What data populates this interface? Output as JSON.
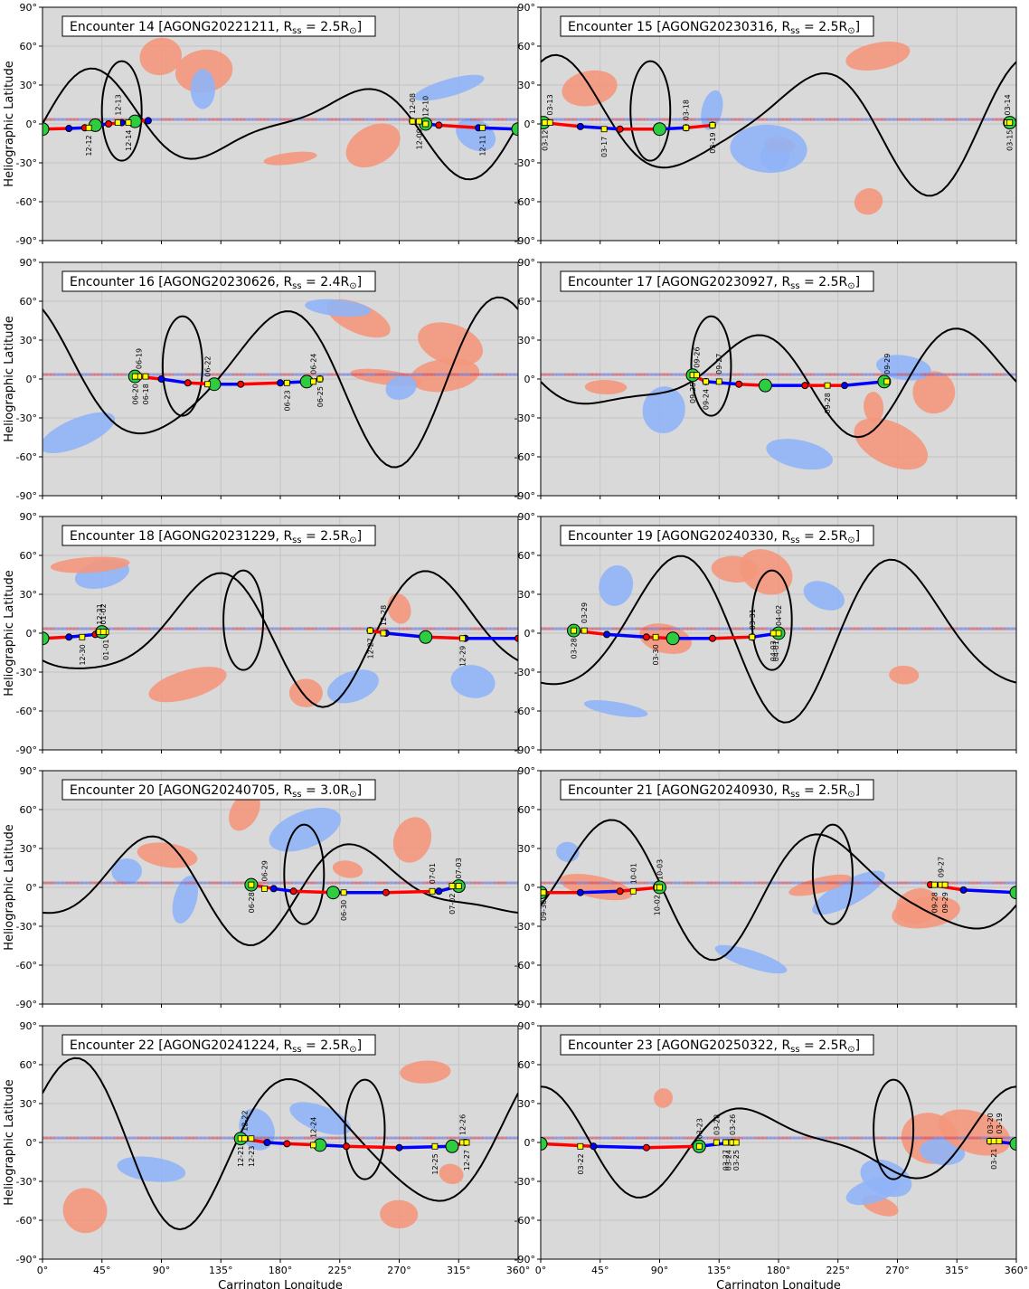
{
  "figure": {
    "xlabel": "Carrington Longitude",
    "ylabel": "Heliographic Latitude",
    "xticks": [
      "0°",
      "45°",
      "90°",
      "135°",
      "180°",
      "225°",
      "270°",
      "315°",
      "360°"
    ],
    "yticks": [
      "90°",
      "60°",
      "30°",
      "0°",
      "-30°",
      "-60°",
      "-90°"
    ],
    "colors": {
      "background": "#d9d9d9",
      "positive": "#f4977c",
      "negative": "#8fb4f7",
      "neutral_line": "#000000",
      "track_red": "#ff0000",
      "track_blue": "#0000ff",
      "marker_green": "#2ecc40",
      "marker_yellow": "#ffff00"
    }
  },
  "chart_data": [
    {
      "type": "scatter",
      "title": "Encounter 14 [AGONG20221211, R$_{ss}$ = 2.5R$_\\odot$]",
      "encounter": "14",
      "magnetogram": "AGONG20221211",
      "rss": "2.5",
      "xlim": [
        0,
        360
      ],
      "ylim": [
        -90,
        90
      ],
      "xlabel": "",
      "ylabel": "Heliographic Latitude",
      "grid": true,
      "track": [
        [
          0,
          -4
        ],
        [
          20,
          -3.5
        ],
        [
          32,
          -3
        ],
        [
          40,
          -1
        ],
        [
          50,
          0
        ],
        [
          60,
          1
        ],
        [
          70,
          2
        ],
        [
          80,
          2.5
        ],
        [
          280,
          2
        ],
        [
          290,
          0
        ],
        [
          300,
          -1
        ],
        [
          330,
          -3
        ],
        [
          360,
          -4
        ]
      ],
      "dates": [
        {
          "label": "12-12",
          "lon": 35
        },
        {
          "label": "12-13",
          "lon": 57
        },
        {
          "label": "12-14",
          "lon": 65
        },
        {
          "label": "12-08",
          "lon": 280
        },
        {
          "label": "12-09",
          "lon": 285
        },
        {
          "label": "12-10",
          "lon": 290
        },
        {
          "label": "12-11",
          "lon": 333
        }
      ]
    },
    {
      "type": "scatter",
      "title": "Encounter 15 [AGONG20230316, R$_{ss}$ = 2.5R$_\\odot$]",
      "encounter": "15",
      "magnetogram": "AGONG20230316",
      "rss": "2.5",
      "xlim": [
        0,
        360
      ],
      "ylim": [
        -90,
        90
      ],
      "xlabel": "",
      "ylabel": "",
      "grid": true,
      "track": [
        [
          2,
          1
        ],
        [
          30,
          -2
        ],
        [
          60,
          -4
        ],
        [
          90,
          -4
        ],
        [
          110,
          -3
        ],
        [
          130,
          -1
        ],
        [
          355,
          1
        ]
      ],
      "dates": [
        {
          "label": "03-12",
          "lon": 3
        },
        {
          "label": "03-13",
          "lon": 7
        },
        {
          "label": "03-17",
          "lon": 48
        },
        {
          "label": "03-18",
          "lon": 110
        },
        {
          "label": "03-19",
          "lon": 130
        },
        {
          "label": "03-14",
          "lon": 353
        },
        {
          "label": "03-15",
          "lon": 355
        }
      ]
    },
    {
      "type": "scatter",
      "title": "Encounter 16 [AGONG20230626, R$_{ss}$ = 2.4R$_\\odot$]",
      "encounter": "16",
      "magnetogram": "AGONG20230626",
      "rss": "2.4",
      "xlim": [
        0,
        360
      ],
      "ylim": [
        -90,
        90
      ],
      "xlabel": "",
      "ylabel": "Heliographic Latitude",
      "grid": true,
      "track": [
        [
          70,
          2
        ],
        [
          90,
          0
        ],
        [
          110,
          -3
        ],
        [
          130,
          -4
        ],
        [
          150,
          -4
        ],
        [
          180,
          -3
        ],
        [
          200,
          -2
        ],
        [
          210,
          0
        ]
      ],
      "dates": [
        {
          "label": "06-18",
          "lon": 78
        },
        {
          "label": "06-19",
          "lon": 73
        },
        {
          "label": "06-20",
          "lon": 70
        },
        {
          "label": "06-22",
          "lon": 125
        },
        {
          "label": "06-23",
          "lon": 185
        },
        {
          "label": "06-24",
          "lon": 205
        },
        {
          "label": "06-25",
          "lon": 210
        }
      ]
    },
    {
      "type": "scatter",
      "title": "Encounter 17 [AGONG20230927, R$_{ss}$ = 2.5R$_\\odot$]",
      "encounter": "17",
      "magnetogram": "AGONG20230927",
      "rss": "2.5",
      "xlim": [
        0,
        360
      ],
      "ylim": [
        -90,
        90
      ],
      "xlabel": "",
      "ylabel": "",
      "grid": true,
      "track": [
        [
          115,
          3
        ],
        [
          125,
          -2
        ],
        [
          150,
          -4
        ],
        [
          170,
          -5
        ],
        [
          200,
          -5
        ],
        [
          230,
          -5
        ],
        [
          260,
          -2
        ]
      ],
      "dates": [
        {
          "label": "09-25",
          "lon": 115
        },
        {
          "label": "09-26",
          "lon": 118
        },
        {
          "label": "09-24",
          "lon": 125
        },
        {
          "label": "09-27",
          "lon": 135
        },
        {
          "label": "09-28",
          "lon": 217
        },
        {
          "label": "09-29",
          "lon": 262
        }
      ]
    },
    {
      "type": "scatter",
      "title": "Encounter 18 [AGONG20231229, R$_{ss}$ = 2.5R$_\\odot$]",
      "encounter": "18",
      "magnetogram": "AGONG20231229",
      "rss": "2.5",
      "xlim": [
        0,
        360
      ],
      "ylim": [
        -90,
        90
      ],
      "xlabel": "",
      "ylabel": "Heliographic Latitude",
      "grid": true,
      "track": [
        [
          0,
          -4
        ],
        [
          20,
          -3
        ],
        [
          40,
          -1
        ],
        [
          45,
          1
        ],
        [
          248,
          2
        ],
        [
          260,
          0
        ],
        [
          290,
          -3
        ],
        [
          320,
          -4
        ],
        [
          360,
          -4
        ]
      ],
      "dates": [
        {
          "label": "12-30",
          "lon": 30
        },
        {
          "label": "12-31",
          "lon": 43
        },
        {
          "label": "01-01",
          "lon": 48
        },
        {
          "label": "01-02",
          "lon": 46
        },
        {
          "label": "12-27",
          "lon": 248
        },
        {
          "label": "12-28",
          "lon": 258
        },
        {
          "label": "12-29",
          "lon": 318
        }
      ]
    },
    {
      "type": "scatter",
      "title": "Encounter 19 [AGONG20240330, R$_{ss}$ = 2.5R$_\\odot$]",
      "encounter": "19",
      "magnetogram": "AGONG20240330",
      "rss": "2.5",
      "xlim": [
        0,
        360
      ],
      "ylim": [
        -90,
        90
      ],
      "xlabel": "",
      "ylabel": "",
      "grid": true,
      "track": [
        [
          25,
          2
        ],
        [
          50,
          -1
        ],
        [
          80,
          -3
        ],
        [
          100,
          -4
        ],
        [
          130,
          -4
        ],
        [
          160,
          -3
        ],
        [
          180,
          0
        ]
      ],
      "dates": [
        {
          "label": "03-28",
          "lon": 25
        },
        {
          "label": "03-29",
          "lon": 33
        },
        {
          "label": "03-30",
          "lon": 87
        },
        {
          "label": "03-31",
          "lon": 160
        },
        {
          "label": "04-01",
          "lon": 178
        },
        {
          "label": "04-02",
          "lon": 180
        },
        {
          "label": "04-03",
          "lon": 176
        }
      ]
    },
    {
      "type": "scatter",
      "title": "Encounter 20 [AGONG20240705, R$_{ss}$ = 3.0R$_\\odot$]",
      "encounter": "20",
      "magnetogram": "AGONG20240705",
      "rss": "3.0",
      "xlim": [
        0,
        360
      ],
      "ylim": [
        -90,
        90
      ],
      "xlabel": "",
      "ylabel": "Heliographic Latitude",
      "grid": true,
      "track": [
        [
          158,
          2
        ],
        [
          175,
          -1
        ],
        [
          190,
          -3
        ],
        [
          220,
          -4
        ],
        [
          260,
          -4
        ],
        [
          300,
          -3
        ],
        [
          315,
          1
        ]
      ],
      "dates": [
        {
          "label": "06-28",
          "lon": 158
        },
        {
          "label": "06-29",
          "lon": 168
        },
        {
          "label": "06-30",
          "lon": 228
        },
        {
          "label": "07-01",
          "lon": 295
        },
        {
          "label": "07-02",
          "lon": 310
        },
        {
          "label": "07-03",
          "lon": 315
        }
      ]
    },
    {
      "type": "scatter",
      "title": "Encounter 21 [AGONG20240930, R$_{ss}$ = 2.5R$_\\odot$]",
      "encounter": "21",
      "magnetogram": "AGONG20240930",
      "rss": "2.5",
      "xlim": [
        0,
        360
      ],
      "ylim": [
        -90,
        90
      ],
      "xlabel": "",
      "ylabel": "",
      "grid": true,
      "track": [
        [
          0,
          -4
        ],
        [
          30,
          -4
        ],
        [
          60,
          -3
        ],
        [
          90,
          0
        ],
        [
          295,
          2
        ],
        [
          320,
          -2
        ],
        [
          360,
          -4
        ]
      ],
      "dates": [
        {
          "label": "09-30",
          "lon": 2
        },
        {
          "label": "10-01",
          "lon": 70
        },
        {
          "label": "10-02",
          "lon": 88
        },
        {
          "label": "10-03",
          "lon": 90
        },
        {
          "label": "09-28",
          "lon": 298
        },
        {
          "label": "09-27",
          "lon": 303
        },
        {
          "label": "09-29",
          "lon": 306
        }
      ]
    },
    {
      "type": "scatter",
      "title": "Encounter 22 [AGONG20241224, R$_{ss}$ = 2.5R$_\\odot$]",
      "encounter": "22",
      "magnetogram": "AGONG20241224",
      "rss": "2.5",
      "xlim": [
        0,
        360
      ],
      "ylim": [
        -90,
        90
      ],
      "xlabel": "Carrington Longitude",
      "ylabel": "Heliographic Latitude",
      "grid": true,
      "track": [
        [
          150,
          3
        ],
        [
          170,
          0
        ],
        [
          185,
          -1
        ],
        [
          210,
          -2
        ],
        [
          230,
          -3
        ],
        [
          270,
          -4
        ],
        [
          310,
          -3
        ],
        [
          320,
          0
        ]
      ],
      "dates": [
        {
          "label": "12-21",
          "lon": 150
        },
        {
          "label": "12-22",
          "lon": 153
        },
        {
          "label": "12-23",
          "lon": 158
        },
        {
          "label": "12-24",
          "lon": 205
        },
        {
          "label": "12-25",
          "lon": 297
        },
        {
          "label": "12-26",
          "lon": 318
        },
        {
          "label": "12-27",
          "lon": 321
        }
      ]
    },
    {
      "type": "scatter",
      "title": "Encounter 23 [AGONG20250322, R$_{ss}$ = 2.5R$_\\odot$]",
      "encounter": "23",
      "magnetogram": "AGONG20250322",
      "rss": "2.5",
      "xlim": [
        0,
        360
      ],
      "ylim": [
        -90,
        90
      ],
      "xlabel": "Carrington Longitude",
      "ylabel": "",
      "grid": true,
      "track": [
        [
          0,
          -1
        ],
        [
          40,
          -3
        ],
        [
          80,
          -4
        ],
        [
          120,
          -3
        ],
        [
          145,
          0
        ],
        [
          340,
          1
        ],
        [
          360,
          -1
        ]
      ],
      "dates": [
        {
          "label": "03-22",
          "lon": 30
        },
        {
          "label": "03-23",
          "lon": 120
        },
        {
          "label": "03-24",
          "lon": 142
        },
        {
          "label": "03-28",
          "lon": 133
        },
        {
          "label": "03-27",
          "lon": 140
        },
        {
          "label": "03-26",
          "lon": 145
        },
        {
          "label": "03-25",
          "lon": 148
        },
        {
          "label": "03-20",
          "lon": 340
        },
        {
          "label": "03-21",
          "lon": 343
        },
        {
          "label": "03-19",
          "lon": 347
        }
      ]
    }
  ]
}
